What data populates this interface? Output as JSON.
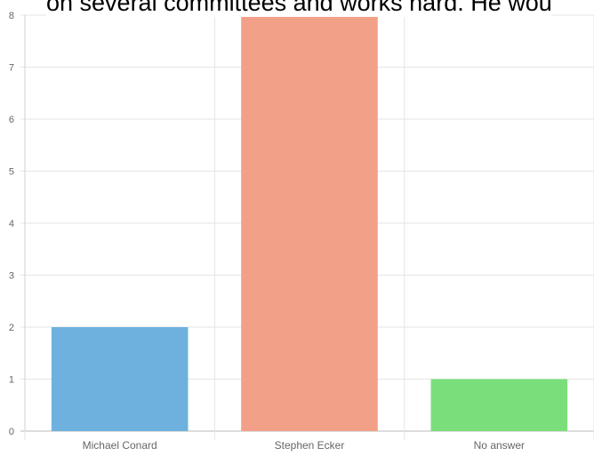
{
  "header_text": "on several committees and works hard. He wou",
  "chart_data": {
    "type": "bar",
    "title": "",
    "xlabel": "",
    "ylabel": "",
    "categories": [
      "Michael Conard",
      "Stephen Ecker",
      "No answer"
    ],
    "values": [
      2,
      8,
      1
    ],
    "colors": [
      "#6fb1de",
      "#f3a088",
      "#7adf7a"
    ],
    "ylim": [
      0,
      8
    ],
    "yticks": [
      0,
      1,
      2,
      3,
      4,
      5,
      6,
      7,
      8
    ],
    "grid": true,
    "legend": "none"
  }
}
